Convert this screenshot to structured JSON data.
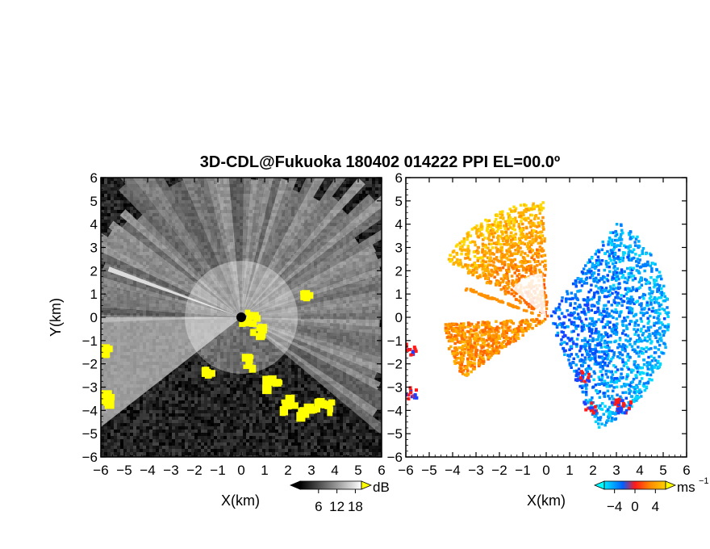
{
  "figure": {
    "title": "3D-CDL@Fukuoka 180402 014222 PPI EL=00.0º"
  },
  "chart_data": [
    {
      "type": "heatmap",
      "panel": "left",
      "quantity": "backscatter intensity",
      "xlabel": "X(km)",
      "ylabel": "Y(km)",
      "xlim": [
        -6,
        6
      ],
      "ylim": [
        -6,
        6
      ],
      "xticks": [
        -6,
        -5,
        -4,
        -3,
        -2,
        -1,
        0,
        1,
        2,
        3,
        4,
        5,
        6
      ],
      "yticks": [
        -6,
        -5,
        -4,
        -3,
        -2,
        -1,
        0,
        1,
        2,
        3,
        4,
        5,
        6
      ],
      "colorbar": {
        "unit": "dB",
        "ticks": [
          6,
          12,
          18
        ],
        "range": [
          0,
          20
        ],
        "colormap": "grayscale black-to-white, yellow above range",
        "colors": {
          "low": "#000000",
          "high": "#ffffff",
          "over": "#ffff00"
        }
      },
      "background": "dark speckle noise",
      "features": [
        {
          "kind": "bright fan of radial spokes",
          "from_deg": -40,
          "to_deg": 180
        },
        {
          "kind": "bright wedge",
          "from_deg": 180,
          "to_deg": 218
        },
        {
          "kind": "thin bright ray",
          "angle_deg": 160
        },
        {
          "kind": "saturated echoes near radar",
          "color": "yellow"
        },
        {
          "kind": "saturated echoes",
          "location": "lower right (x 1.5..3.5, y -4..-3)",
          "color": "yellow"
        },
        {
          "kind": "saturated echoes",
          "location": "left edge (x -6, y -4..-1)",
          "color": "yellow"
        }
      ]
    },
    {
      "type": "heatmap",
      "panel": "right",
      "quantity": "radial velocity",
      "xlabel": "X(km)",
      "xlim": [
        -6,
        6
      ],
      "ylim": [
        -6,
        6
      ],
      "xticks": [
        -6,
        -5,
        -4,
        -3,
        -2,
        -1,
        0,
        1,
        2,
        3,
        4,
        5,
        6
      ],
      "yticks": [
        -6,
        -5,
        -4,
        -3,
        -2,
        -1,
        0,
        1,
        2,
        3,
        4,
        5,
        6
      ],
      "colorbar": {
        "unit": "ms",
        "unit_exponent": "−1",
        "ticks": [
          -4,
          0,
          4
        ],
        "range": [
          -6,
          6
        ],
        "colormap": "cyan-blue (negative) to red-orange-yellow (positive)",
        "colors": {
          "under": "#00ffff",
          "neg": "#0050ff",
          "zero": "#ff2020",
          "pos": "#ff9000",
          "over": "#ffff00"
        }
      },
      "features": [
        {
          "kind": "approaching flow (blue / cyan)",
          "sector_deg": [
            -65,
            55
          ],
          "extent_km": 5
        },
        {
          "kind": "receding flow (orange / yellow)",
          "sector_deg": [
            92,
            150
          ],
          "extent_km": 5
        },
        {
          "kind": "orange wedge",
          "sector_deg": [
            183,
            215
          ],
          "extent_km": 4.5
        },
        {
          "kind": "thin orange ray",
          "angle_deg": 160
        },
        {
          "kind": "red/blue echoes",
          "location": "lower right and left edge"
        }
      ]
    }
  ],
  "axis_labels": {
    "left_x": "X(km)",
    "right_x": "X(km)",
    "left_y": "Y(km)"
  }
}
